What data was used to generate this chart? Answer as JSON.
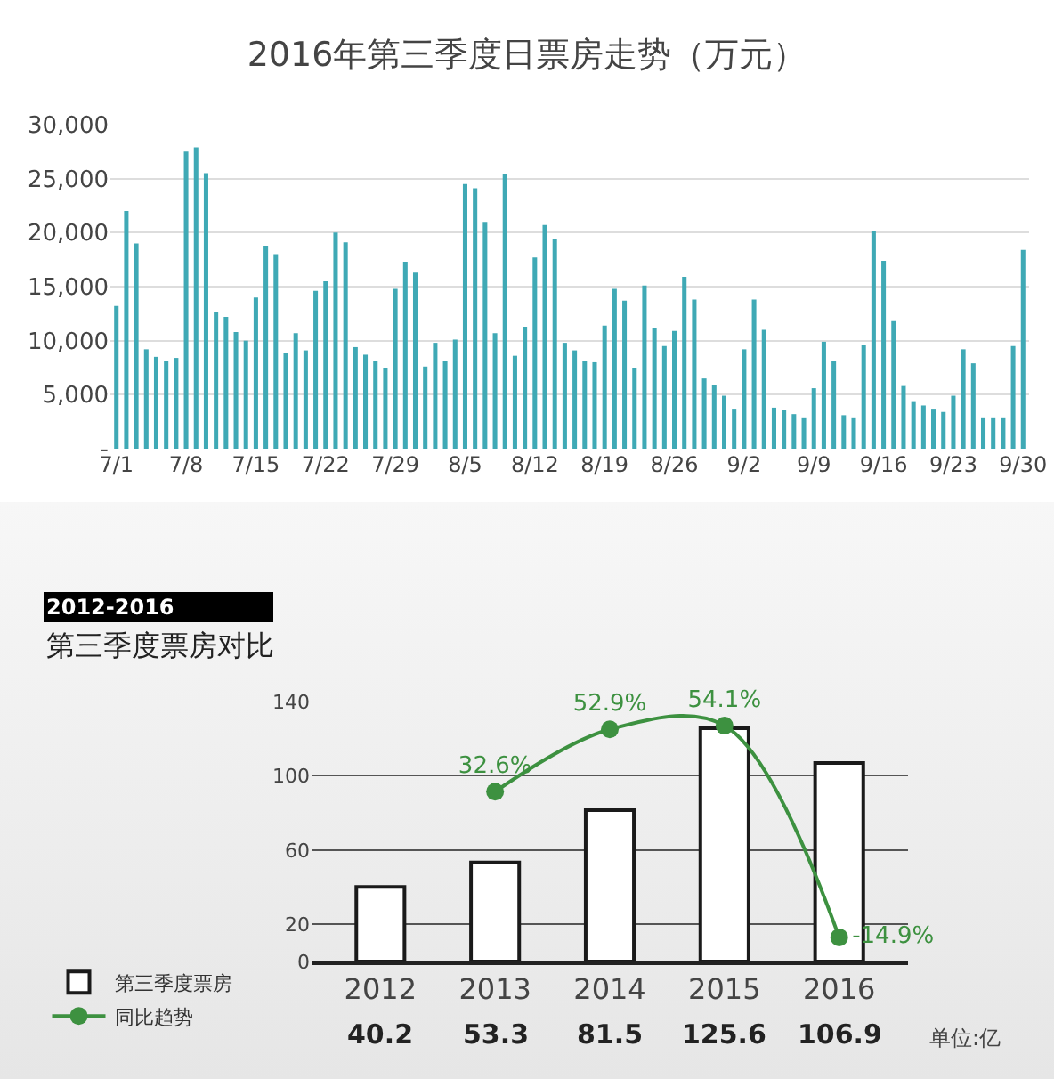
{
  "chart_data": [
    {
      "type": "bar",
      "title": "2016年第三季度日票房走势（万元）",
      "categories": [
        "7/1",
        null,
        null,
        null,
        null,
        null,
        null,
        "7/8",
        null,
        null,
        null,
        null,
        null,
        null,
        "7/15",
        null,
        null,
        null,
        null,
        null,
        null,
        "7/22",
        null,
        null,
        null,
        null,
        null,
        null,
        "7/29",
        null,
        null,
        null,
        null,
        null,
        null,
        "8/5",
        null,
        null,
        null,
        null,
        null,
        null,
        "8/12",
        null,
        null,
        null,
        null,
        null,
        null,
        "8/19",
        null,
        null,
        null,
        null,
        null,
        null,
        "8/26",
        null,
        null,
        null,
        null,
        null,
        null,
        "9/2",
        null,
        null,
        null,
        null,
        null,
        null,
        "9/9",
        null,
        null,
        null,
        null,
        null,
        null,
        "9/16",
        null,
        null,
        null,
        null,
        null,
        null,
        "9/23",
        null,
        null,
        null,
        null,
        null,
        null,
        "9/30"
      ],
      "values": [
        13200,
        22000,
        19000,
        9200,
        8500,
        8100,
        8400,
        27500,
        27900,
        25500,
        12700,
        12200,
        10800,
        10000,
        14000,
        18800,
        18000,
        8900,
        10700,
        9100,
        14600,
        15500,
        20000,
        19100,
        9400,
        8700,
        8100,
        7500,
        14800,
        17300,
        16300,
        7600,
        9800,
        8100,
        10100,
        24500,
        24100,
        21000,
        10700,
        25400,
        8600,
        11300,
        17700,
        20700,
        19400,
        9800,
        9100,
        8100,
        8000,
        11400,
        14800,
        13700,
        7500,
        15100,
        11200,
        9500,
        10900,
        15900,
        13800,
        6500,
        5900,
        4900,
        3700,
        9200,
        13800,
        11000,
        3800,
        3600,
        3200,
        2900,
        5600,
        9900,
        8100,
        3100,
        2900,
        9600,
        20200,
        17400,
        11800,
        5800,
        4400,
        4000,
        3700,
        3400,
        4900,
        9200,
        7900,
        2900,
        2900,
        2900,
        9500,
        18400
      ],
      "color": "#3fa9b5",
      "ylim": [
        0,
        30000
      ],
      "yticks": [
        {
          "value": 0,
          "label": "-"
        },
        {
          "value": 5000,
          "label": "5,000"
        },
        {
          "value": 10000,
          "label": "10,000"
        },
        {
          "value": 15000,
          "label": "15,000"
        },
        {
          "value": 20000,
          "label": "20,000"
        },
        {
          "value": 25000,
          "label": "25,000"
        },
        {
          "value": 30000,
          "label": "30,000"
        }
      ],
      "grid": "y"
    },
    {
      "type": "bar",
      "title": "2012-2016",
      "subtitle": "第三季度票房对比",
      "categories": [
        "2012",
        "2013",
        "2014",
        "2015",
        "2016"
      ],
      "series": [
        {
          "name": "第三季度票房",
          "type": "bar",
          "color": "#ffffff",
          "values": [
            40.2,
            53.3,
            81.5,
            125.6,
            106.9
          ],
          "value_labels": [
            "40.2",
            "53.3",
            "81.5",
            "125.6",
            "106.9"
          ]
        },
        {
          "name": "同比趋势",
          "type": "line",
          "axis": "y2",
          "color": "#3d9140",
          "values": [
            null,
            32.6,
            52.9,
            54.1,
            -14.9
          ],
          "value_labels": [
            null,
            "32.6%",
            "52.9%",
            "54.1%",
            "-14.9%"
          ]
        }
      ],
      "ylim": [
        0,
        140
      ],
      "yticks": [
        0,
        20,
        60,
        100,
        140
      ],
      "grid": "y",
      "legend": "bottom left",
      "marker": "circle",
      "annotations": [
        "单位:亿"
      ]
    }
  ]
}
